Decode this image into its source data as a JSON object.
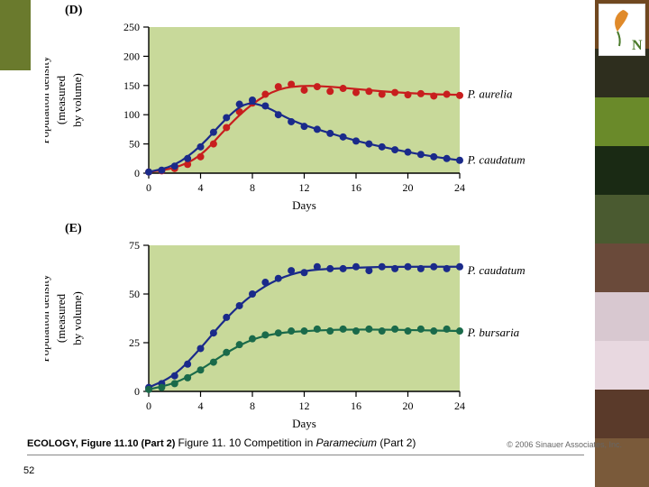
{
  "accent_color": "#6a7a2d",
  "sidebar_swatches": [
    "#704820",
    "#2e2e1e",
    "#6a8a2a",
    "#1a2a14",
    "#4a5a30",
    "#6a4a3a",
    "#d8c8d0",
    "#e8d8e0",
    "#5a3a2a",
    "#7a5a3a"
  ],
  "logo": {
    "leaf_color": "#e08a2a",
    "text_color": "#4a7a2a",
    "text": "N"
  },
  "page_number": "52",
  "figure_ref": "ECOLOGY, Figure 11.10 (Part 2)",
  "caption_prefix": "Figure 11. 10  Competition in ",
  "caption_italic": "Paramecium",
  "caption_suffix": " (Part 2)",
  "copyright": "© 2006 Sinauer Associates, Inc.",
  "panel_D": {
    "label": "(D)",
    "type": "scatter+line",
    "plot_bg": "#c8d99a",
    "axis_color": "#000000",
    "tick_fontsize": 12,
    "label_fontsize": 13,
    "ylabel_line1": "Population density",
    "ylabel_line2": "(measured",
    "ylabel_line3": "by volume)",
    "xlabel": "Days",
    "xlim": [
      0,
      24
    ],
    "xtick_step": 4,
    "ylim": [
      0,
      250
    ],
    "ytick_step": 50,
    "marker_radius": 4,
    "line_width": 2.2,
    "series": [
      {
        "name": "P. aurelia",
        "name_italic": true,
        "color": "#c81e1e",
        "points": [
          [
            0,
            2
          ],
          [
            1,
            4
          ],
          [
            2,
            8
          ],
          [
            3,
            15
          ],
          [
            4,
            28
          ],
          [
            5,
            50
          ],
          [
            6,
            78
          ],
          [
            7,
            105
          ],
          [
            8,
            120
          ],
          [
            9,
            135
          ],
          [
            10,
            148
          ],
          [
            11,
            152
          ],
          [
            12,
            142
          ],
          [
            13,
            148
          ],
          [
            14,
            140
          ],
          [
            15,
            145
          ],
          [
            16,
            138
          ],
          [
            17,
            140
          ],
          [
            18,
            135
          ],
          [
            19,
            138
          ],
          [
            20,
            134
          ],
          [
            21,
            136
          ],
          [
            22,
            132
          ],
          [
            23,
            135
          ],
          [
            24,
            133
          ]
        ],
        "curve": [
          [
            0,
            2
          ],
          [
            2,
            8
          ],
          [
            4,
            28
          ],
          [
            6,
            78
          ],
          [
            8,
            120
          ],
          [
            10,
            145
          ],
          [
            12,
            150
          ],
          [
            14,
            148
          ],
          [
            16,
            144
          ],
          [
            18,
            140
          ],
          [
            20,
            137
          ],
          [
            22,
            135
          ],
          [
            24,
            134
          ]
        ],
        "label_xy": [
          24.6,
          135
        ]
      },
      {
        "name": "P. caudatum",
        "name_italic": true,
        "color": "#1a2a8a",
        "points": [
          [
            0,
            2
          ],
          [
            1,
            5
          ],
          [
            2,
            12
          ],
          [
            3,
            25
          ],
          [
            4,
            45
          ],
          [
            5,
            70
          ],
          [
            6,
            95
          ],
          [
            7,
            118
          ],
          [
            8,
            125
          ],
          [
            9,
            115
          ],
          [
            10,
            100
          ],
          [
            11,
            88
          ],
          [
            12,
            80
          ],
          [
            13,
            75
          ],
          [
            14,
            68
          ],
          [
            15,
            62
          ],
          [
            16,
            55
          ],
          [
            17,
            50
          ],
          [
            18,
            45
          ],
          [
            19,
            40
          ],
          [
            20,
            36
          ],
          [
            21,
            32
          ],
          [
            22,
            28
          ],
          [
            23,
            25
          ],
          [
            24,
            22
          ]
        ],
        "curve": [
          [
            0,
            2
          ],
          [
            2,
            12
          ],
          [
            4,
            45
          ],
          [
            6,
            95
          ],
          [
            7.5,
            122
          ],
          [
            9,
            115
          ],
          [
            11,
            90
          ],
          [
            13,
            75
          ],
          [
            16,
            55
          ],
          [
            19,
            40
          ],
          [
            22,
            28
          ],
          [
            24,
            22
          ]
        ],
        "label_xy": [
          24.6,
          22
        ]
      }
    ]
  },
  "panel_E": {
    "label": "(E)",
    "type": "scatter+line",
    "plot_bg": "#c8d99a",
    "axis_color": "#000000",
    "tick_fontsize": 12,
    "label_fontsize": 13,
    "ylabel_line1": "Population density",
    "ylabel_line2": "(measured",
    "ylabel_line3": "by volume)",
    "xlabel": "Days",
    "xlim": [
      0,
      24
    ],
    "xtick_step": 4,
    "ylim": [
      0,
      75
    ],
    "ytick_step": 25,
    "marker_radius": 4,
    "line_width": 2.2,
    "series": [
      {
        "name": "P. caudatum",
        "name_italic": true,
        "color": "#1a2a8a",
        "points": [
          [
            0,
            2
          ],
          [
            1,
            4
          ],
          [
            2,
            8
          ],
          [
            3,
            14
          ],
          [
            4,
            22
          ],
          [
            5,
            30
          ],
          [
            6,
            38
          ],
          [
            7,
            44
          ],
          [
            8,
            50
          ],
          [
            9,
            56
          ],
          [
            10,
            58
          ],
          [
            11,
            62
          ],
          [
            12,
            61
          ],
          [
            13,
            64
          ],
          [
            14,
            63
          ],
          [
            15,
            63
          ],
          [
            16,
            64
          ],
          [
            17,
            62
          ],
          [
            18,
            64
          ],
          [
            19,
            63
          ],
          [
            20,
            64
          ],
          [
            21,
            63
          ],
          [
            22,
            64
          ],
          [
            23,
            63
          ],
          [
            24,
            64
          ]
        ],
        "curve": [
          [
            0,
            2
          ],
          [
            2,
            8
          ],
          [
            4,
            22
          ],
          [
            6,
            38
          ],
          [
            8,
            50
          ],
          [
            10,
            58
          ],
          [
            12,
            62
          ],
          [
            14,
            63
          ],
          [
            18,
            64
          ],
          [
            24,
            64
          ]
        ],
        "label_xy": [
          24.6,
          62
        ]
      },
      {
        "name": "P. bursaria",
        "name_italic": true,
        "color": "#1a6a4a",
        "points": [
          [
            0,
            1
          ],
          [
            1,
            2
          ],
          [
            2,
            4
          ],
          [
            3,
            7
          ],
          [
            4,
            11
          ],
          [
            5,
            15
          ],
          [
            6,
            20
          ],
          [
            7,
            24
          ],
          [
            8,
            27
          ],
          [
            9,
            29
          ],
          [
            10,
            30
          ],
          [
            11,
            31
          ],
          [
            12,
            31
          ],
          [
            13,
            32
          ],
          [
            14,
            31
          ],
          [
            15,
            32
          ],
          [
            16,
            31
          ],
          [
            17,
            32
          ],
          [
            18,
            31
          ],
          [
            19,
            32
          ],
          [
            20,
            31
          ],
          [
            21,
            32
          ],
          [
            22,
            31
          ],
          [
            23,
            32
          ],
          [
            24,
            31
          ]
        ],
        "curve": [
          [
            0,
            1
          ],
          [
            2,
            4
          ],
          [
            4,
            11
          ],
          [
            6,
            20
          ],
          [
            8,
            27
          ],
          [
            10,
            30
          ],
          [
            12,
            31
          ],
          [
            16,
            32
          ],
          [
            24,
            31
          ]
        ],
        "label_xy": [
          24.6,
          30
        ]
      }
    ]
  }
}
